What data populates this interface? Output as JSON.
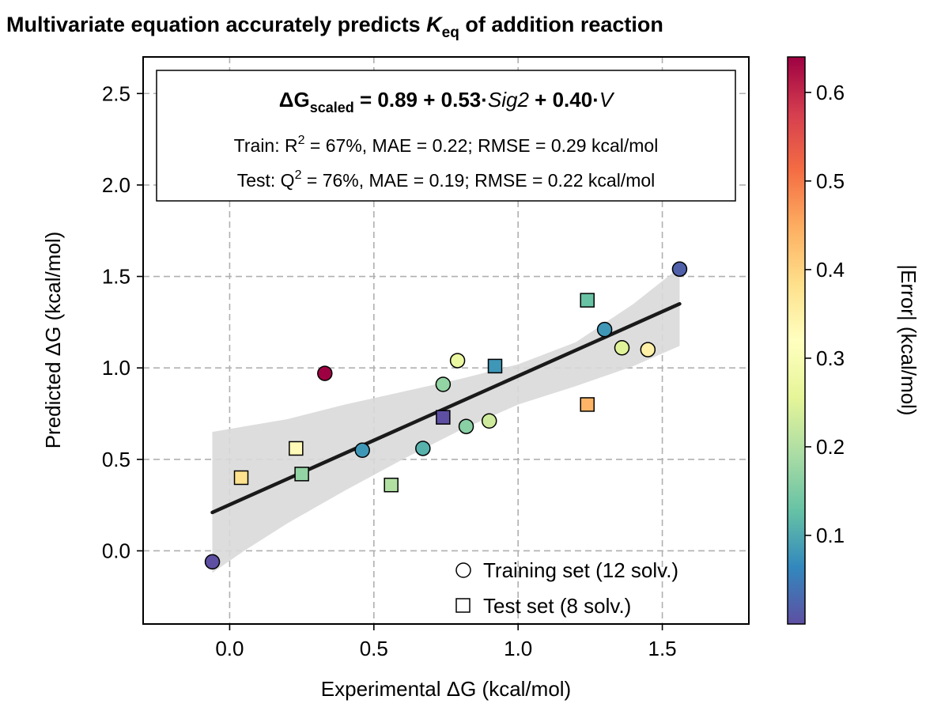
{
  "chart_data": {
    "type": "scatter",
    "title": {
      "prefix": "Multivariate equation accurately predicts ",
      "k": "K",
      "sub": "eq",
      "suffix": " of addition reaction"
    },
    "xlabel": "Experimental ΔG (kcal/mol)",
    "ylabel": "Predicted ΔG (kcal/mol)",
    "xlim": [
      -0.3,
      1.8
    ],
    "ylim": [
      -0.4,
      2.7
    ],
    "x_ticks": [
      0.0,
      0.5,
      1.0,
      1.5
    ],
    "y_ticks": [
      0.0,
      0.5,
      1.0,
      1.5,
      2.0,
      2.5
    ],
    "x_tick_labels": [
      "0.0",
      "0.5",
      "1.0",
      "1.5"
    ],
    "y_tick_labels": [
      "0.0",
      "0.5",
      "1.0",
      "1.5",
      "2.0",
      "2.5"
    ],
    "grid": true,
    "annotation": {
      "eq_dg": "ΔG",
      "eq_sub": "scaled",
      "eq_part1": " = 0.89 + 0.53·",
      "eq_sig2": "Sig2",
      "eq_part2": " + 0.40·",
      "eq_v": "V",
      "train_a": "Train: R",
      "train_sup": "2",
      "train_b": " = 67%, MAE = 0.22; RMSE = 0.29 kcal/mol",
      "test_a": "Test: Q",
      "test_sup": "2",
      "test_b": " = 76%, MAE = 0.19; RMSE = 0.22 kcal/mol"
    },
    "fit_line": {
      "x": [
        -0.06,
        1.56
      ],
      "y": [
        0.21,
        1.35
      ]
    },
    "confidence_band": {
      "x": [
        -0.06,
        0.05,
        0.2,
        0.4,
        0.6,
        0.8,
        1.0,
        1.2,
        1.4,
        1.56
      ],
      "upper": [
        0.65,
        0.68,
        0.72,
        0.8,
        0.87,
        0.94,
        1.02,
        1.14,
        1.35,
        1.55
      ],
      "lower": [
        -0.12,
        0.0,
        0.15,
        0.33,
        0.5,
        0.66,
        0.8,
        0.9,
        1.01,
        1.12
      ]
    },
    "series": [
      {
        "name": "Training set (12 solv.)",
        "marker": "circle",
        "points": [
          {
            "x": -0.06,
            "y": -0.06,
            "error": 0.0
          },
          {
            "x": 0.33,
            "y": 0.97,
            "error": 0.64
          },
          {
            "x": 0.46,
            "y": 0.55,
            "error": 0.08
          },
          {
            "x": 0.67,
            "y": 0.56,
            "error": 0.11
          },
          {
            "x": 0.74,
            "y": 0.91,
            "error": 0.17
          },
          {
            "x": 0.79,
            "y": 1.04,
            "error": 0.27
          },
          {
            "x": 0.82,
            "y": 0.68,
            "error": 0.16
          },
          {
            "x": 0.9,
            "y": 0.71,
            "error": 0.23
          },
          {
            "x": 1.3,
            "y": 1.21,
            "error": 0.08
          },
          {
            "x": 1.36,
            "y": 1.11,
            "error": 0.25
          },
          {
            "x": 1.45,
            "y": 1.1,
            "error": 0.35
          },
          {
            "x": 1.56,
            "y": 1.54,
            "error": 0.02
          }
        ]
      },
      {
        "name": "Test set (8 solv.)",
        "marker": "square",
        "points": [
          {
            "x": 0.04,
            "y": 0.4,
            "error": 0.38
          },
          {
            "x": 0.23,
            "y": 0.56,
            "error": 0.33
          },
          {
            "x": 0.25,
            "y": 0.42,
            "error": 0.17
          },
          {
            "x": 0.56,
            "y": 0.36,
            "error": 0.2
          },
          {
            "x": 0.74,
            "y": 0.73,
            "error": 0.0
          },
          {
            "x": 0.92,
            "y": 1.01,
            "error": 0.08
          },
          {
            "x": 1.24,
            "y": 1.37,
            "error": 0.13
          },
          {
            "x": 1.24,
            "y": 0.8,
            "error": 0.44
          }
        ]
      }
    ],
    "legend_placement": "lower-right",
    "colorbar": {
      "label": "|Error| (kcal/mol)",
      "range": [
        0.0,
        0.64
      ],
      "ticks": [
        0.1,
        0.2,
        0.3,
        0.4,
        0.5,
        0.6
      ],
      "tick_labels": [
        "0.1",
        "0.2",
        "0.3",
        "0.4",
        "0.5",
        "0.6"
      ],
      "colormap": [
        "#5e4fa2",
        "#3288bd",
        "#66c2a5",
        "#abdda4",
        "#e6f598",
        "#ffffbf",
        "#fee08b",
        "#fdae61",
        "#f46d43",
        "#d53e4f",
        "#9e0142"
      ]
    }
  }
}
